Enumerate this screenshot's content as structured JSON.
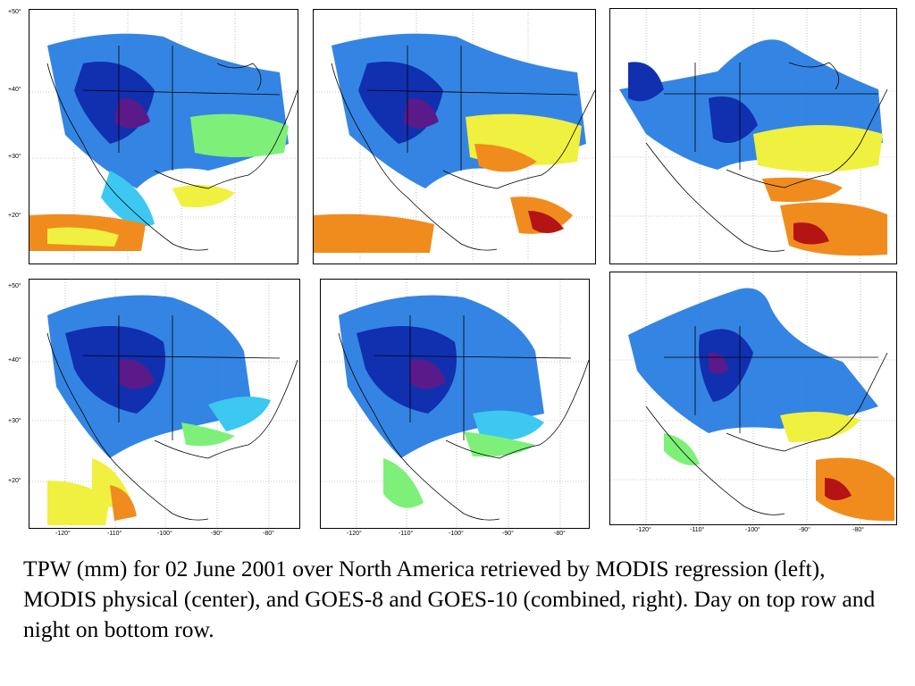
{
  "lat_labels": [
    "+50°",
    "+40°",
    "+30°",
    "+20°"
  ],
  "lon_labels": [
    "-120°",
    "-110°",
    "-100°",
    "-90°",
    "-80°"
  ],
  "panels": [
    {
      "label": "MODIS regression, day"
    },
    {
      "label": "MODIS physical, day"
    },
    {
      "label": "GOES-8 and GOES-10 combined, day"
    },
    {
      "label": "MODIS regression, night"
    },
    {
      "label": "MODIS physical, night"
    },
    {
      "label": "GOES-8 and GOES-10 combined, night"
    }
  ],
  "colors": {
    "very_dry": "#5a1a8a",
    "dry": "#1030b0",
    "mid_dry": "#1e78e0",
    "mid": "#3cc8f0",
    "mid_moist": "#7ef07a",
    "moist": "#f0f040",
    "very_moist": "#f08c1e",
    "wettest": "#b41414"
  },
  "caption": "TPW (mm) for 02 June 2001 over North America retrieved by MODIS regression (left), MODIS physical (center), and GOES-8 and GOES-10 (combined, right).  Day on top row and night on bottom row."
}
